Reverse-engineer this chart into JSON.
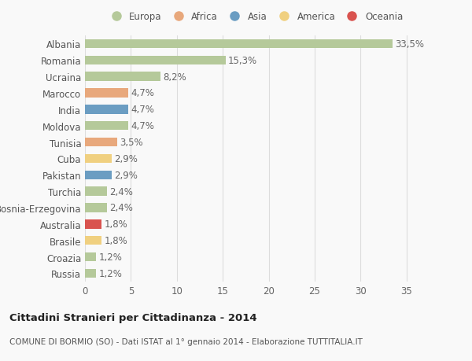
{
  "countries": [
    "Albania",
    "Romania",
    "Ucraina",
    "Marocco",
    "India",
    "Moldova",
    "Tunisia",
    "Cuba",
    "Pakistan",
    "Turchia",
    "Bosnia-Erzegovina",
    "Australia",
    "Brasile",
    "Croazia",
    "Russia"
  ],
  "values": [
    33.5,
    15.3,
    8.2,
    4.7,
    4.7,
    4.7,
    3.5,
    2.9,
    2.9,
    2.4,
    2.4,
    1.8,
    1.8,
    1.2,
    1.2
  ],
  "labels": [
    "33,5%",
    "15,3%",
    "8,2%",
    "4,7%",
    "4,7%",
    "4,7%",
    "3,5%",
    "2,9%",
    "2,9%",
    "2,4%",
    "2,4%",
    "1,8%",
    "1,8%",
    "1,2%",
    "1,2%"
  ],
  "continents": [
    "Europa",
    "Europa",
    "Europa",
    "Africa",
    "Asia",
    "Europa",
    "Africa",
    "America",
    "Asia",
    "Europa",
    "Europa",
    "Oceania",
    "America",
    "Europa",
    "Europa"
  ],
  "continent_colors": {
    "Europa": "#b5c99a",
    "Africa": "#e8a87c",
    "Asia": "#6b9dc2",
    "America": "#f0d080",
    "Oceania": "#d9534f"
  },
  "legend_order": [
    "Europa",
    "Africa",
    "Asia",
    "America",
    "Oceania"
  ],
  "legend_colors": [
    "#b5c99a",
    "#e8a87c",
    "#6b9dc2",
    "#f0d080",
    "#d9534f"
  ],
  "xlim": [
    0,
    37
  ],
  "xticks": [
    0,
    5,
    10,
    15,
    20,
    25,
    30,
    35
  ],
  "title": "Cittadini Stranieri per Cittadinanza - 2014",
  "subtitle": "COMUNE DI BORMIO (SO) - Dati ISTAT al 1° gennaio 2014 - Elaborazione TUTTITALIA.IT",
  "bg_color": "#f9f9f9",
  "grid_color": "#dddddd",
  "bar_height": 0.55,
  "label_fontsize": 8.5,
  "tick_fontsize": 8.5
}
